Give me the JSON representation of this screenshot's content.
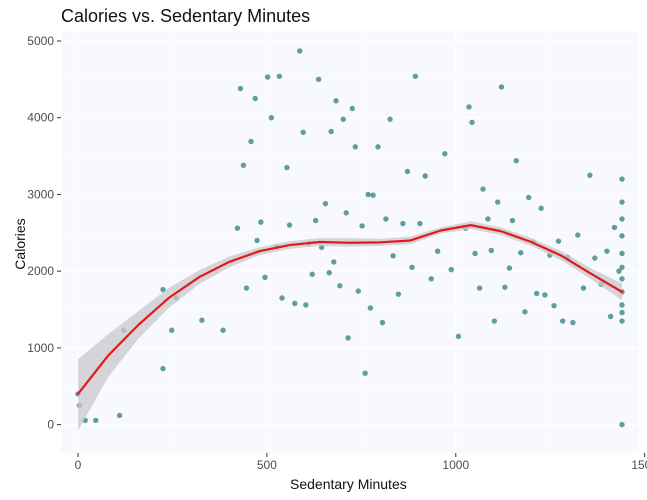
{
  "chart_data": {
    "type": "scatter",
    "title": "Calories vs. Sedentary Minutes",
    "xlabel": "Sedentary Minutes",
    "ylabel": "Calories",
    "xlim": [
      -45,
      1485
    ],
    "ylim": [
      -370,
      5130
    ],
    "x_ticks": [
      0,
      500,
      1000,
      1500
    ],
    "y_ticks": [
      0,
      1000,
      2000,
      3000,
      4000,
      5000
    ],
    "grid": true,
    "legend": "none",
    "colors": {
      "points": "#5F9EA0",
      "smooth_line": "#E31A1C",
      "confidence_band": "#C8C8CC",
      "panel_background": "#F8F8FF",
      "grid": "#FFFFFF"
    },
    "series": [
      {
        "type": "points",
        "x": [
          0,
          4,
          19,
          47,
          110,
          121,
          225,
          225,
          248,
          260,
          328,
          384,
          422,
          430,
          438,
          446,
          458,
          469,
          474,
          484,
          495,
          502,
          512,
          526,
          533,
          540,
          553,
          560,
          574,
          587,
          596,
          603,
          611,
          620,
          629,
          637,
          645,
          655,
          665,
          670,
          677,
          683,
          693,
          702,
          710,
          715,
          726,
          734,
          742,
          752,
          760,
          768,
          774,
          781,
          794,
          806,
          815,
          826,
          834,
          848,
          860,
          872,
          884,
          893,
          905,
          919,
          935,
          952,
          971,
          988,
          1007,
          1026,
          1035,
          1043,
          1051,
          1063,
          1072,
          1085,
          1094,
          1102,
          1111,
          1121,
          1130,
          1142,
          1150,
          1160,
          1172,
          1183,
          1193,
          1204,
          1214,
          1226,
          1236,
          1249,
          1260,
          1272,
          1283,
          1296,
          1310,
          1323,
          1338,
          1355,
          1368,
          1385,
          1400,
          1410,
          1420,
          1432,
          1440,
          1440,
          1440,
          1440,
          1440,
          1440,
          1440,
          1440,
          1440,
          1440,
          1440,
          1440
        ],
        "y": [
          400,
          250,
          55,
          55,
          120,
          1230,
          1760,
          730,
          1230,
          1650,
          1360,
          1230,
          2560,
          4380,
          3380,
          1780,
          3690,
          4250,
          2400,
          2640,
          1920,
          4530,
          4000,
          2320,
          4540,
          1650,
          3350,
          2600,
          1580,
          4870,
          3810,
          1560,
          2360,
          1960,
          2660,
          4500,
          2310,
          2880,
          1980,
          3820,
          2120,
          4220,
          1810,
          3980,
          2760,
          1130,
          4120,
          3620,
          1740,
          2590,
          670,
          3000,
          1520,
          2990,
          3620,
          1330,
          2680,
          3980,
          2200,
          1700,
          2620,
          3300,
          2050,
          4540,
          2620,
          3240,
          1900,
          2260,
          3530,
          2020,
          1150,
          2560,
          4140,
          3940,
          2230,
          1780,
          3070,
          2680,
          2270,
          1350,
          2900,
          4400,
          1790,
          2040,
          2660,
          3440,
          2240,
          1470,
          2960,
          2380,
          1710,
          2820,
          1690,
          2210,
          1550,
          2390,
          1350,
          2180,
          1330,
          2470,
          1780,
          3250,
          2170,
          1830,
          2260,
          1410,
          2570,
          2000,
          0,
          1350,
          1560,
          1730,
          1900,
          2050,
          2230,
          2460,
          2680,
          2900,
          3200,
          1460
        ]
      },
      {
        "type": "smooth",
        "x": [
          0,
          80,
          160,
          240,
          320,
          400,
          480,
          560,
          640,
          720,
          800,
          880,
          960,
          1040,
          1120,
          1200,
          1280,
          1360,
          1440
        ],
        "y": [
          400,
          900,
          1300,
          1650,
          1920,
          2120,
          2260,
          2340,
          2380,
          2370,
          2375,
          2400,
          2530,
          2600,
          2520,
          2380,
          2200,
          1960,
          1730
        ],
        "band_upper": [
          850,
          1180,
          1480,
          1780,
          2010,
          2190,
          2310,
          2390,
          2430,
          2430,
          2420,
          2450,
          2570,
          2650,
          2570,
          2430,
          2260,
          2030,
          1840
        ],
        "band_lower": [
          -80,
          620,
          1120,
          1520,
          1830,
          2050,
          2210,
          2290,
          2330,
          2320,
          2330,
          2350,
          2490,
          2550,
          2470,
          2330,
          2140,
          1890,
          1620
        ]
      }
    ]
  }
}
